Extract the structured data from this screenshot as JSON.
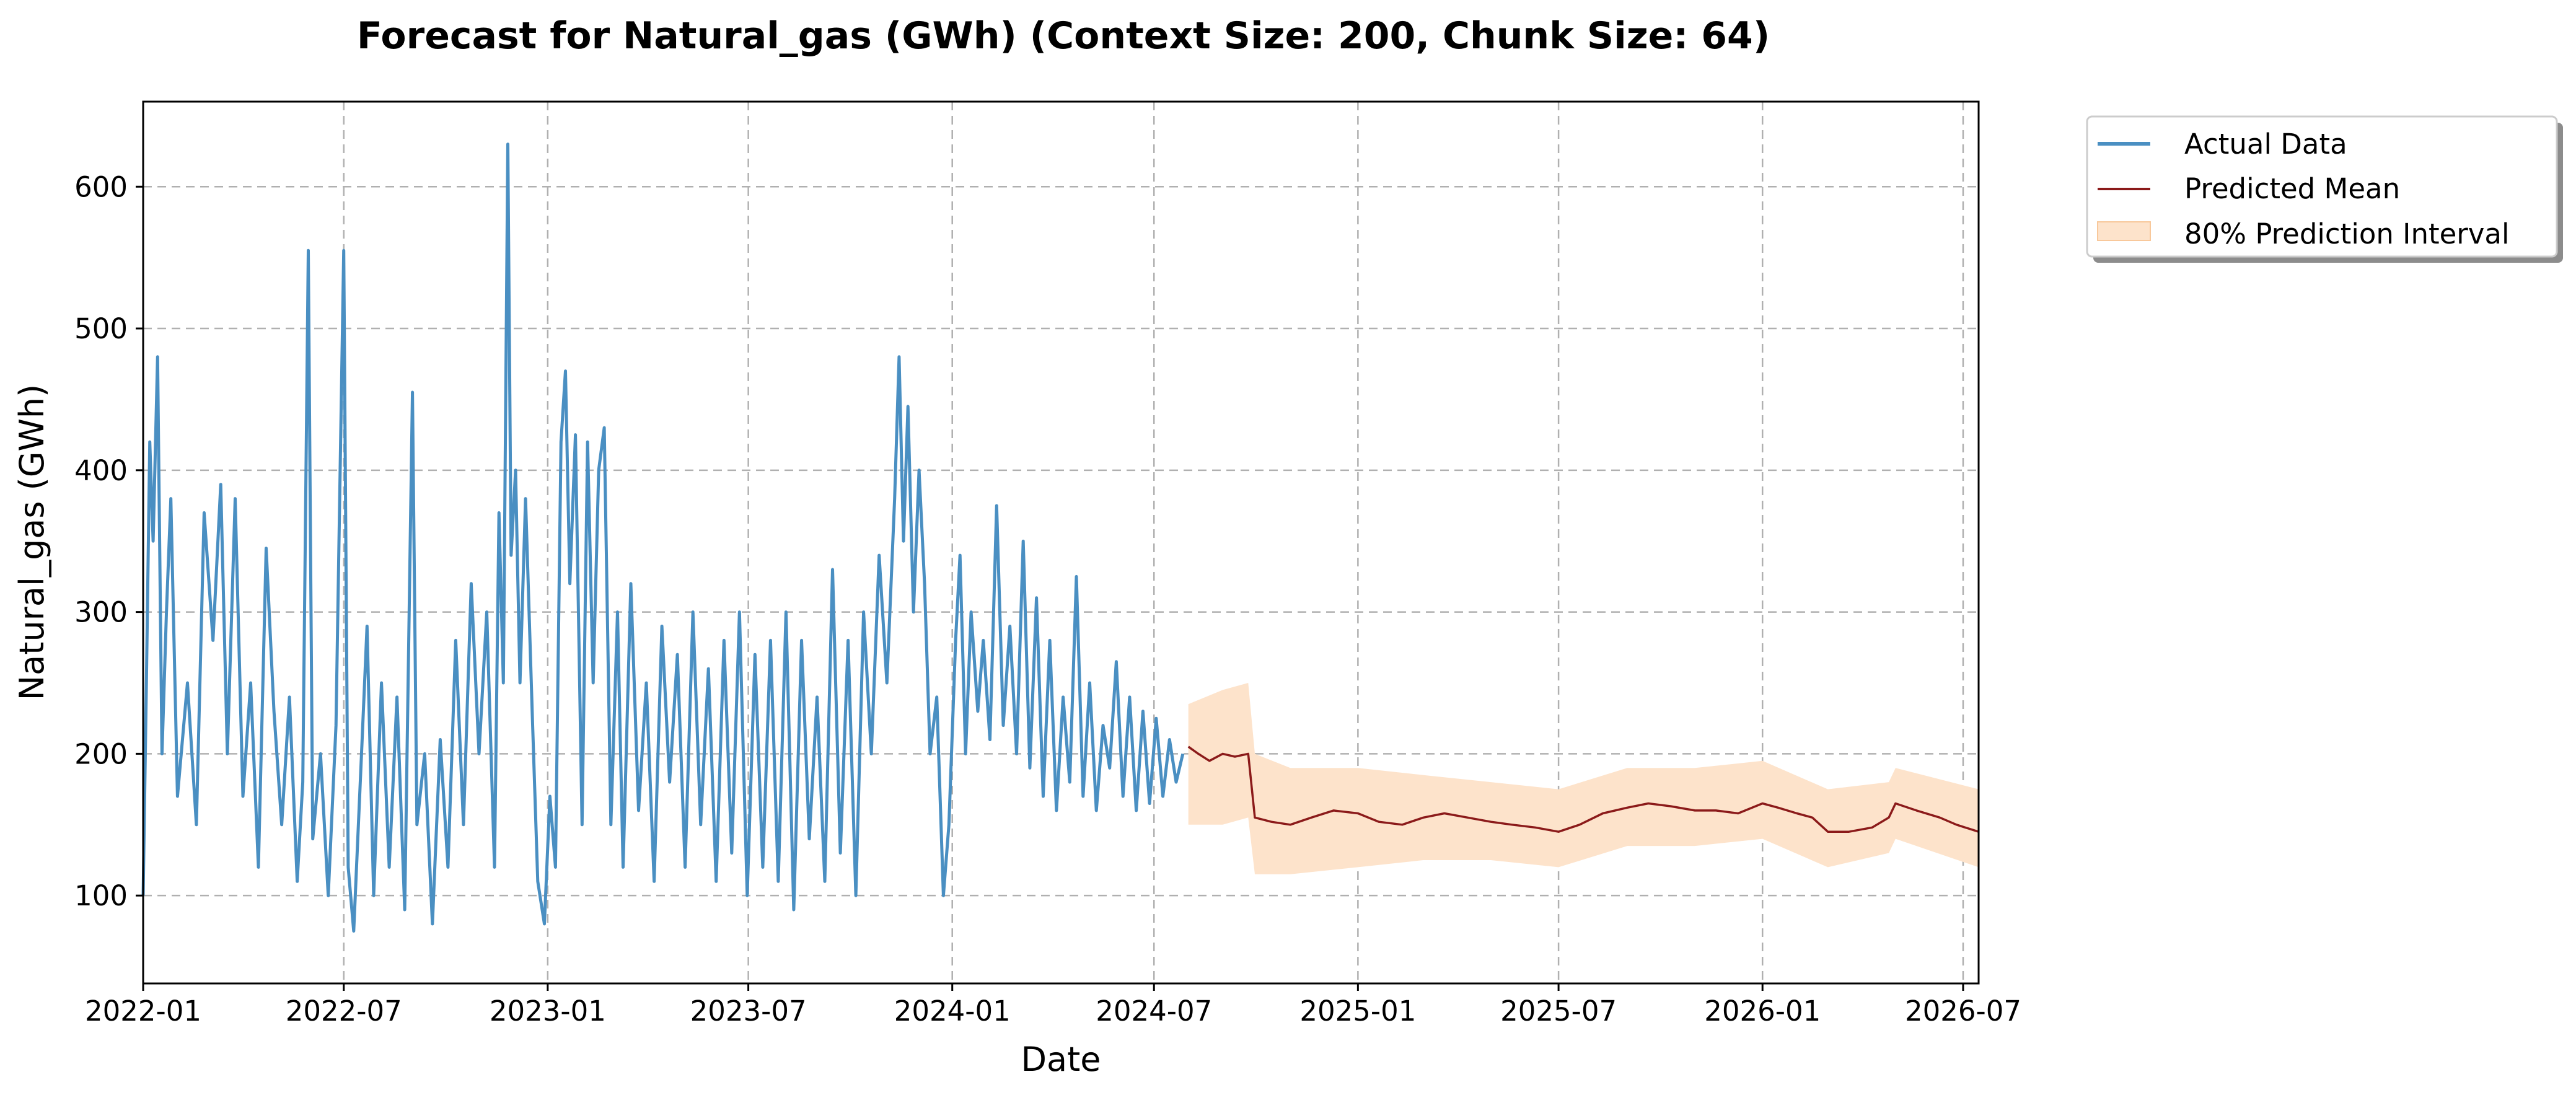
{
  "chart_data": {
    "type": "line",
    "title": "Forecast for Natural_gas (GWh) (Context Size: 200, Chunk Size: 64)",
    "xlabel": "Date",
    "ylabel": "Natural_gas (GWh)",
    "xlim": [
      "2022-01-01",
      "2026-07-15"
    ],
    "ylim": [
      38,
      660
    ],
    "x_ticks": [
      "2022-01",
      "2022-07",
      "2023-01",
      "2023-07",
      "2024-01",
      "2024-07",
      "2025-01",
      "2025-07",
      "2026-01",
      "2026-07"
    ],
    "y_ticks": [
      100,
      200,
      300,
      400,
      500,
      600
    ],
    "grid": true,
    "legend_position": "outside-top-right",
    "legend": [
      "Actual Data",
      "Predicted Mean",
      "80% Prediction Interval"
    ],
    "colors": {
      "actual": "#4a8fc2",
      "predicted": "#8b1a1a",
      "interval": "#fde3cb"
    },
    "series": [
      {
        "name": "Actual Data",
        "points": [
          [
            "2022-01-01",
            100
          ],
          [
            "2022-01-04",
            255
          ],
          [
            "2022-01-07",
            420
          ],
          [
            "2022-01-10",
            350
          ],
          [
            "2022-01-14",
            480
          ],
          [
            "2022-01-18",
            200
          ],
          [
            "2022-01-22",
            300
          ],
          [
            "2022-01-26",
            380
          ],
          [
            "2022-02-01",
            170
          ],
          [
            "2022-02-10",
            250
          ],
          [
            "2022-02-18",
            150
          ],
          [
            "2022-02-25",
            370
          ],
          [
            "2022-03-05",
            280
          ],
          [
            "2022-03-12",
            390
          ],
          [
            "2022-03-18",
            200
          ],
          [
            "2022-03-25",
            380
          ],
          [
            "2022-04-01",
            170
          ],
          [
            "2022-04-08",
            250
          ],
          [
            "2022-04-15",
            120
          ],
          [
            "2022-04-22",
            345
          ],
          [
            "2022-04-29",
            230
          ],
          [
            "2022-05-06",
            150
          ],
          [
            "2022-05-13",
            240
          ],
          [
            "2022-05-20",
            110
          ],
          [
            "2022-05-25",
            180
          ],
          [
            "2022-05-30",
            555
          ],
          [
            "2022-06-03",
            140
          ],
          [
            "2022-06-10",
            200
          ],
          [
            "2022-06-17",
            100
          ],
          [
            "2022-06-24",
            220
          ],
          [
            "2022-07-01",
            555
          ],
          [
            "2022-07-05",
            120
          ],
          [
            "2022-07-10",
            75
          ],
          [
            "2022-07-17",
            200
          ],
          [
            "2022-07-22",
            290
          ],
          [
            "2022-07-28",
            100
          ],
          [
            "2022-08-04",
            250
          ],
          [
            "2022-08-11",
            120
          ],
          [
            "2022-08-18",
            240
          ],
          [
            "2022-08-25",
            90
          ],
          [
            "2022-09-01",
            455
          ],
          [
            "2022-09-05",
            150
          ],
          [
            "2022-09-12",
            200
          ],
          [
            "2022-09-19",
            80
          ],
          [
            "2022-09-26",
            210
          ],
          [
            "2022-10-03",
            120
          ],
          [
            "2022-10-10",
            280
          ],
          [
            "2022-10-17",
            150
          ],
          [
            "2022-10-24",
            320
          ],
          [
            "2022-10-31",
            200
          ],
          [
            "2022-11-07",
            300
          ],
          [
            "2022-11-14",
            120
          ],
          [
            "2022-11-18",
            370
          ],
          [
            "2022-11-22",
            250
          ],
          [
            "2022-11-26",
            630
          ],
          [
            "2022-11-29",
            340
          ],
          [
            "2022-12-03",
            400
          ],
          [
            "2022-12-07",
            250
          ],
          [
            "2022-12-12",
            380
          ],
          [
            "2022-12-18",
            230
          ],
          [
            "2022-12-23",
            110
          ],
          [
            "2022-12-29",
            80
          ],
          [
            "2023-01-03",
            170
          ],
          [
            "2023-01-08",
            120
          ],
          [
            "2023-01-13",
            420
          ],
          [
            "2023-01-17",
            470
          ],
          [
            "2023-01-21",
            320
          ],
          [
            "2023-01-26",
            425
          ],
          [
            "2023-02-01",
            150
          ],
          [
            "2023-02-06",
            420
          ],
          [
            "2023-02-11",
            250
          ],
          [
            "2023-02-16",
            400
          ],
          [
            "2023-02-21",
            430
          ],
          [
            "2023-02-27",
            150
          ],
          [
            "2023-03-05",
            300
          ],
          [
            "2023-03-10",
            120
          ],
          [
            "2023-03-17",
            320
          ],
          [
            "2023-03-24",
            160
          ],
          [
            "2023-03-31",
            250
          ],
          [
            "2023-04-07",
            110
          ],
          [
            "2023-04-14",
            290
          ],
          [
            "2023-04-21",
            180
          ],
          [
            "2023-04-28",
            270
          ],
          [
            "2023-05-05",
            120
          ],
          [
            "2023-05-12",
            300
          ],
          [
            "2023-05-19",
            150
          ],
          [
            "2023-05-26",
            260
          ],
          [
            "2023-06-02",
            110
          ],
          [
            "2023-06-09",
            280
          ],
          [
            "2023-06-16",
            130
          ],
          [
            "2023-06-23",
            300
          ],
          [
            "2023-06-30",
            100
          ],
          [
            "2023-07-07",
            270
          ],
          [
            "2023-07-14",
            120
          ],
          [
            "2023-07-21",
            280
          ],
          [
            "2023-07-28",
            110
          ],
          [
            "2023-08-04",
            300
          ],
          [
            "2023-08-11",
            90
          ],
          [
            "2023-08-18",
            280
          ],
          [
            "2023-08-25",
            140
          ],
          [
            "2023-09-01",
            240
          ],
          [
            "2023-09-08",
            110
          ],
          [
            "2023-09-15",
            330
          ],
          [
            "2023-09-22",
            130
          ],
          [
            "2023-09-29",
            280
          ],
          [
            "2023-10-06",
            100
          ],
          [
            "2023-10-13",
            300
          ],
          [
            "2023-10-20",
            200
          ],
          [
            "2023-10-27",
            340
          ],
          [
            "2023-11-03",
            250
          ],
          [
            "2023-11-10",
            380
          ],
          [
            "2023-11-14",
            480
          ],
          [
            "2023-11-18",
            350
          ],
          [
            "2023-11-22",
            445
          ],
          [
            "2023-11-27",
            300
          ],
          [
            "2023-12-02",
            400
          ],
          [
            "2023-12-07",
            320
          ],
          [
            "2023-12-12",
            200
          ],
          [
            "2023-12-18",
            240
          ],
          [
            "2023-12-24",
            100
          ],
          [
            "2023-12-29",
            150
          ],
          [
            "2024-01-04",
            280
          ],
          [
            "2024-01-08",
            340
          ],
          [
            "2024-01-13",
            200
          ],
          [
            "2024-01-18",
            300
          ],
          [
            "2024-01-24",
            230
          ],
          [
            "2024-01-29",
            280
          ],
          [
            "2024-02-04",
            210
          ],
          [
            "2024-02-10",
            375
          ],
          [
            "2024-02-16",
            220
          ],
          [
            "2024-02-22",
            290
          ],
          [
            "2024-02-28",
            200
          ],
          [
            "2024-03-05",
            350
          ],
          [
            "2024-03-11",
            190
          ],
          [
            "2024-03-17",
            310
          ],
          [
            "2024-03-23",
            170
          ],
          [
            "2024-03-29",
            280
          ],
          [
            "2024-04-04",
            160
          ],
          [
            "2024-04-10",
            240
          ],
          [
            "2024-04-16",
            180
          ],
          [
            "2024-04-22",
            325
          ],
          [
            "2024-04-28",
            170
          ],
          [
            "2024-05-04",
            250
          ],
          [
            "2024-05-10",
            160
          ],
          [
            "2024-05-16",
            220
          ],
          [
            "2024-05-22",
            190
          ],
          [
            "2024-05-28",
            265
          ],
          [
            "2024-06-03",
            170
          ],
          [
            "2024-06-09",
            240
          ],
          [
            "2024-06-15",
            160
          ],
          [
            "2024-06-21",
            230
          ],
          [
            "2024-06-27",
            165
          ],
          [
            "2024-07-03",
            225
          ],
          [
            "2024-07-09",
            170
          ],
          [
            "2024-07-15",
            210
          ],
          [
            "2024-07-21",
            180
          ],
          [
            "2024-07-27",
            200
          ]
        ]
      },
      {
        "name": "Predicted Mean",
        "points": [
          [
            "2024-08-01",
            205
          ],
          [
            "2024-08-10",
            200
          ],
          [
            "2024-08-20",
            195
          ],
          [
            "2024-09-01",
            200
          ],
          [
            "2024-09-12",
            198
          ],
          [
            "2024-09-24",
            200
          ],
          [
            "2024-09-30",
            155
          ],
          [
            "2024-10-15",
            152
          ],
          [
            "2024-11-01",
            150
          ],
          [
            "2024-11-20",
            155
          ],
          [
            "2024-12-10",
            160
          ],
          [
            "2025-01-01",
            158
          ],
          [
            "2025-01-20",
            152
          ],
          [
            "2025-02-10",
            150
          ],
          [
            "2025-03-01",
            155
          ],
          [
            "2025-03-20",
            158
          ],
          [
            "2025-04-10",
            155
          ],
          [
            "2025-05-01",
            152
          ],
          [
            "2025-05-20",
            150
          ],
          [
            "2025-06-10",
            148
          ],
          [
            "2025-07-01",
            145
          ],
          [
            "2025-07-20",
            150
          ],
          [
            "2025-08-10",
            158
          ],
          [
            "2025-09-01",
            162
          ],
          [
            "2025-09-20",
            165
          ],
          [
            "2025-10-10",
            163
          ],
          [
            "2025-11-01",
            160
          ],
          [
            "2025-11-20",
            160
          ],
          [
            "2025-12-10",
            158
          ],
          [
            "2026-01-01",
            165
          ],
          [
            "2026-01-15",
            162
          ],
          [
            "2026-02-01",
            158
          ],
          [
            "2026-02-15",
            155
          ],
          [
            "2026-03-01",
            145
          ],
          [
            "2026-03-20",
            145
          ],
          [
            "2026-04-10",
            148
          ],
          [
            "2026-04-25",
            155
          ],
          [
            "2026-05-01",
            165
          ],
          [
            "2026-05-20",
            160
          ],
          [
            "2026-06-10",
            155
          ],
          [
            "2026-06-25",
            150
          ],
          [
            "2026-07-15",
            145
          ]
        ]
      }
    ],
    "interval": {
      "name": "80% Prediction Interval",
      "points": [
        [
          "2024-08-01",
          150,
          235
        ],
        [
          "2024-09-01",
          150,
          245
        ],
        [
          "2024-09-24",
          155,
          250
        ],
        [
          "2024-09-30",
          115,
          200
        ],
        [
          "2024-11-01",
          115,
          190
        ],
        [
          "2025-01-01",
          120,
          190
        ],
        [
          "2025-03-01",
          125,
          185
        ],
        [
          "2025-05-01",
          125,
          180
        ],
        [
          "2025-07-01",
          120,
          175
        ],
        [
          "2025-09-01",
          135,
          190
        ],
        [
          "2025-11-01",
          135,
          190
        ],
        [
          "2026-01-01",
          140,
          195
        ],
        [
          "2026-03-01",
          120,
          175
        ],
        [
          "2026-04-25",
          130,
          180
        ],
        [
          "2026-05-01",
          140,
          190
        ],
        [
          "2026-07-15",
          120,
          175
        ]
      ]
    }
  }
}
